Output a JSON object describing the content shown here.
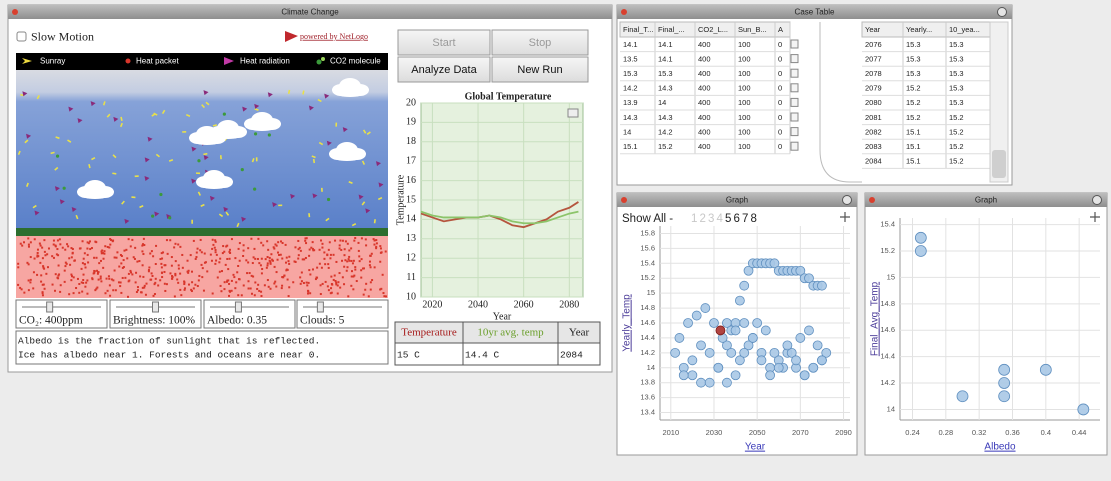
{
  "climate_window": {
    "title": "Climate Change",
    "slow_motion": "Slow Motion",
    "netlogo_link": "powered by NetLogo",
    "legend": [
      "Sunray",
      "Heat packet",
      "Heat radiation",
      "CO2 molecule"
    ],
    "sliders": [
      "CO₂: 400ppm",
      "Brightness: 100%",
      "Albedo: 0.35",
      "Clouds: 5"
    ],
    "info": [
      "Albedo is the fraction of sunlight that is reflected.",
      "Ice has albedo near 1. Forests and oceans are near 0."
    ],
    "buttons": [
      "Start",
      "Stop",
      "Analyze Data",
      "New Run"
    ],
    "readout": {
      "headers": [
        "Temperature",
        "10yr avg. temp",
        "Year"
      ],
      "values": [
        "15 C",
        "14.4 C",
        "2084"
      ]
    }
  },
  "temperature_chart": {
    "type": "line",
    "title": "Global Temperature",
    "x_label": "Year",
    "y_label": "Temperature",
    "x": [
      2015,
      2020,
      2025,
      2030,
      2035,
      2040,
      2045,
      2050,
      2055,
      2060,
      2065,
      2070,
      2075,
      2080,
      2084
    ],
    "series": [
      {
        "color": "#b5553e",
        "values": [
          14.3,
          14.1,
          13.9,
          14.0,
          14.1,
          14.1,
          14.2,
          14.0,
          13.7,
          13.6,
          13.8,
          14.0,
          14.4,
          14.6,
          14.9
        ]
      },
      {
        "color": "#8cc46a",
        "values": [
          14.4,
          14.2,
          14.1,
          14.1,
          14.1,
          14.1,
          14.2,
          14.1,
          13.9,
          13.8,
          13.8,
          13.9,
          14.1,
          14.3,
          14.4
        ]
      }
    ],
    "xlim": [
      2015,
      2086
    ],
    "xticks": [
      2020,
      2040,
      2060,
      2080
    ],
    "ylim": [
      10,
      20
    ],
    "yticks": [
      10,
      11,
      12,
      13,
      14,
      15,
      16,
      17,
      18,
      19,
      20
    ],
    "grid": true
  },
  "case_table": {
    "title": "Case Table",
    "left": {
      "columns": [
        "Final_T...",
        "Final_...",
        "CO2_L...",
        "Sun_B...",
        "A"
      ],
      "rows": [
        [
          "14.1",
          "14.1",
          "400",
          "100",
          "0"
        ],
        [
          "13.5",
          "14.1",
          "400",
          "100",
          "0"
        ],
        [
          "15.3",
          "15.3",
          "400",
          "100",
          "0"
        ],
        [
          "14.2",
          "14.3",
          "400",
          "100",
          "0"
        ],
        [
          "13.9",
          "14",
          "400",
          "100",
          "0"
        ],
        [
          "14.3",
          "14.3",
          "400",
          "100",
          "0"
        ],
        [
          "14",
          "14.2",
          "400",
          "100",
          "0"
        ],
        [
          "15.1",
          "15.2",
          "400",
          "100",
          "0"
        ]
      ]
    },
    "right": {
      "columns": [
        "Year",
        "Yearly...",
        "10_yea..."
      ],
      "rows": [
        [
          "2076",
          "15.3",
          "15.3"
        ],
        [
          "2077",
          "15.3",
          "15.3"
        ],
        [
          "2078",
          "15.3",
          "15.3"
        ],
        [
          "2079",
          "15.2",
          "15.3"
        ],
        [
          "2080",
          "15.2",
          "15.3"
        ],
        [
          "2081",
          "15.2",
          "15.2"
        ],
        [
          "2082",
          "15.1",
          "15.2"
        ],
        [
          "2083",
          "15.1",
          "15.2"
        ],
        [
          "2084",
          "15.1",
          "15.2"
        ]
      ]
    }
  },
  "graphs": [
    {
      "type": "scatter",
      "title": "Graph",
      "show_all": "Show All -",
      "runs": [
        "1",
        "2",
        "3",
        "4",
        "5",
        "6",
        "7",
        "8"
      ],
      "x_label": "Year",
      "y_label": "Yearly_Temp",
      "xlim": [
        2005,
        2093
      ],
      "xticks": [
        2010,
        2030,
        2050,
        2070,
        2090
      ],
      "ylim": [
        13.3,
        15.9
      ],
      "yticks": [
        13.4,
        13.6,
        13.8,
        14,
        14.2,
        14.4,
        14.6,
        14.8,
        15,
        15.2,
        15.4,
        15.6,
        15.8
      ],
      "grid": true,
      "series": [
        {
          "color": "#a9c8e6",
          "x": [
            2036,
            2038,
            2040,
            2042,
            2044,
            2046,
            2048,
            2050,
            2052,
            2054,
            2056,
            2058,
            2060,
            2062,
            2064,
            2066,
            2068,
            2070,
            2072,
            2074,
            2076,
            2078,
            2080
          ],
          "values": [
            14.6,
            14.5,
            14.6,
            14.9,
            15.1,
            15.3,
            15.4,
            15.4,
            15.4,
            15.4,
            15.4,
            15.4,
            15.3,
            15.3,
            15.3,
            15.3,
            15.3,
            15.3,
            15.2,
            15.2,
            15.1,
            15.1,
            15.1
          ]
        },
        {
          "color": "#a9c8e6",
          "x": [
            2012,
            2016,
            2020,
            2024,
            2028,
            2032,
            2036,
            2040,
            2044,
            2048,
            2052,
            2056,
            2060,
            2064,
            2068,
            2072,
            2076,
            2080
          ],
          "values": [
            14.2,
            14.0,
            13.9,
            13.8,
            13.8,
            14.0,
            14.3,
            14.5,
            14.6,
            14.4,
            14.2,
            14.0,
            14.1,
            14.2,
            14.0,
            13.9,
            14.0,
            14.1
          ]
        },
        {
          "color": "#a9c8e6",
          "x": [
            2014,
            2018,
            2022,
            2026,
            2030,
            2034,
            2038,
            2042,
            2046,
            2050,
            2054,
            2058,
            2062,
            2066,
            2070,
            2074,
            2078,
            2082
          ],
          "values": [
            14.4,
            14.6,
            14.7,
            14.8,
            14.6,
            14.4,
            14.2,
            14.1,
            14.3,
            14.6,
            14.5,
            14.2,
            14.0,
            14.2,
            14.4,
            14.5,
            14.3,
            14.2
          ]
        },
        {
          "color": "#a9c8e6",
          "x": [
            2016,
            2020,
            2024,
            2028,
            2032,
            2036,
            2040,
            2044,
            2048,
            2052,
            2056,
            2060,
            2064,
            2068,
            2072,
            2076,
            2080
          ],
          "values": [
            13.9,
            14.1,
            14.3,
            14.2,
            14.0,
            13.8,
            13.9,
            14.2,
            14.4,
            14.1,
            13.9,
            14.0,
            14.3,
            14.1,
            13.9,
            14.0,
            14.1
          ]
        },
        {
          "color": "#a8302c",
          "x": [
            2033
          ],
          "values": [
            14.5
          ]
        }
      ]
    },
    {
      "type": "scatter",
      "title": "Graph",
      "x_label": "Albedo",
      "y_label": "Final_Avg_Temp",
      "xlim": [
        0.225,
        0.465
      ],
      "xticks": [
        0.24,
        0.28,
        0.32,
        0.36,
        0.4,
        0.44
      ],
      "ylim": [
        13.92,
        15.45
      ],
      "yticks": [
        14,
        14.2,
        14.4,
        14.6,
        14.8,
        15,
        15.2,
        15.4
      ],
      "grid": true,
      "series": [
        {
          "color": "#a9c8e6",
          "x": [
            0.25,
            0.25,
            0.3,
            0.35,
            0.35,
            0.35,
            0.4,
            0.445
          ],
          "values": [
            15.3,
            15.2,
            14.1,
            14.3,
            14.2,
            14.1,
            14.3,
            14.0
          ]
        }
      ]
    }
  ]
}
